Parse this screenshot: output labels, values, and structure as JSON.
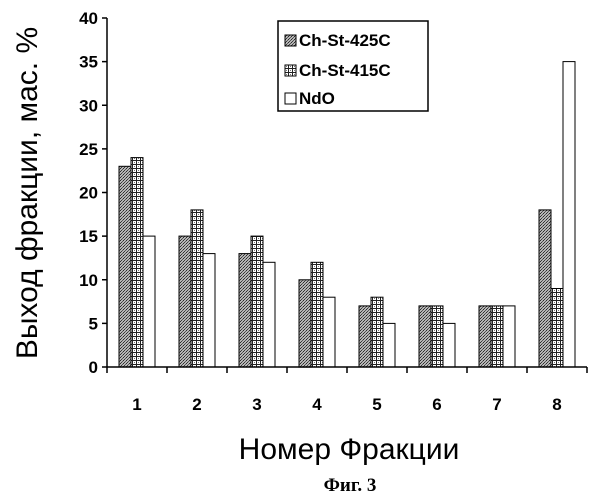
{
  "chart_data": {
    "type": "bar",
    "title": "",
    "xlabel": "Номер Фракции",
    "ylabel": "Выход фракции, мас. %",
    "categories": [
      "1",
      "2",
      "3",
      "4",
      "5",
      "6",
      "7",
      "8"
    ],
    "ylim": [
      0,
      40
    ],
    "yticks": [
      "0",
      "5",
      "10",
      "15",
      "20",
      "25",
      "30",
      "35",
      "40"
    ],
    "grid": false,
    "legend_position": "top-center",
    "series": [
      {
        "name": "Ch-St-425C",
        "values": [
          23,
          15,
          13,
          10,
          7,
          7,
          7,
          18
        ],
        "pattern": "dense-dots",
        "color": "#8a8a8a"
      },
      {
        "name": "Ch-St-415C",
        "values": [
          24,
          18,
          15,
          12,
          8,
          7,
          7,
          9
        ],
        "pattern": "grid",
        "color": "#555555"
      },
      {
        "name": "NdO",
        "values": [
          15,
          13,
          12,
          8,
          5,
          5,
          7,
          35
        ],
        "pattern": "none",
        "color": "#ffffff"
      }
    ]
  },
  "caption": "Фиг. 3"
}
